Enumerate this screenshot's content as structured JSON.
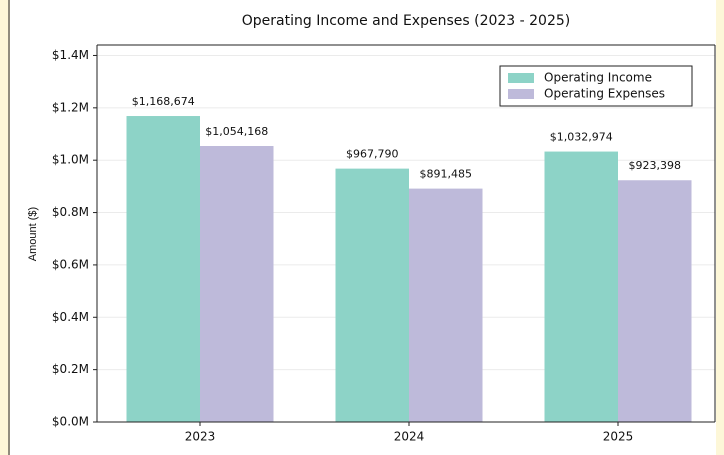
{
  "chart_data": {
    "type": "bar",
    "title": "Operating Income and Expenses (2023 - 2025)",
    "ylabel": "Amount ($)",
    "categories": [
      "2023",
      "2024",
      "2025"
    ],
    "series": [
      {
        "name": "Operating Income",
        "color": "#8dd3c7",
        "values": [
          1168674,
          967790,
          1032974
        ],
        "value_labels": [
          "$1,168,674",
          "$967,790",
          "$1,032,974"
        ]
      },
      {
        "name": "Operating Expenses",
        "color": "#bebada",
        "values": [
          1054168,
          891485,
          923398
        ],
        "value_labels": [
          "$1,054,168",
          "$891,485",
          "$923,398"
        ]
      }
    ],
    "ylim": [
      0,
      1440000
    ],
    "yticks": [
      {
        "value": 0,
        "label": "$0.0M"
      },
      {
        "value": 200000,
        "label": "$0.2M"
      },
      {
        "value": 400000,
        "label": "$0.4M"
      },
      {
        "value": 600000,
        "label": "$0.6M"
      },
      {
        "value": 800000,
        "label": "$0.8M"
      },
      {
        "value": 1000000,
        "label": "$1.0M"
      },
      {
        "value": 1200000,
        "label": "$1.2M"
      },
      {
        "value": 1400000,
        "label": "$1.4M"
      }
    ],
    "grid": true,
    "legend": "upper right"
  }
}
